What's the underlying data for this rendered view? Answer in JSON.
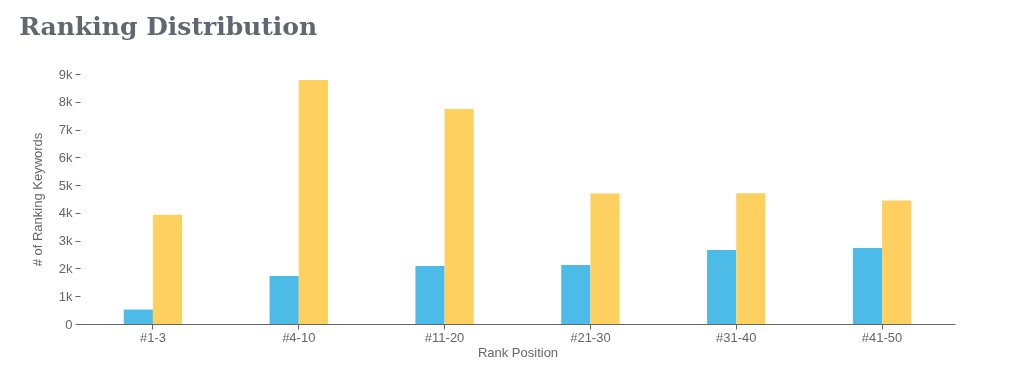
{
  "chart_data": {
    "type": "bar",
    "title": "Ranking Distribution",
    "xlabel": "Rank Position",
    "ylabel": "# of Ranking Keywords",
    "categories": [
      "#1-3",
      "#4-10",
      "#11-20",
      "#21-30",
      "#31-40",
      "#41-50"
    ],
    "series": [
      {
        "color": "#4dbbe8",
        "values": [
          520,
          1730,
          2090,
          2120,
          2660,
          2740
        ]
      },
      {
        "color": "#fdd060",
        "values": [
          3930,
          8780,
          7740,
          4700,
          4710,
          4450
        ]
      }
    ],
    "ylim": [
      0,
      9000
    ],
    "yticks": [
      0,
      {
        "value": 1000,
        "label": "1k"
      },
      {
        "value": 2000,
        "label": "2k"
      },
      {
        "value": 3000,
        "label": "3k"
      },
      {
        "value": 4000,
        "label": "4k"
      },
      {
        "value": 5000,
        "label": "5k"
      },
      {
        "value": 6000,
        "label": "6k"
      },
      {
        "value": 7000,
        "label": "7k"
      },
      {
        "value": 8000,
        "label": "8k"
      },
      {
        "value": 9000,
        "label": "9k"
      }
    ],
    "grid": false,
    "legend": false
  }
}
